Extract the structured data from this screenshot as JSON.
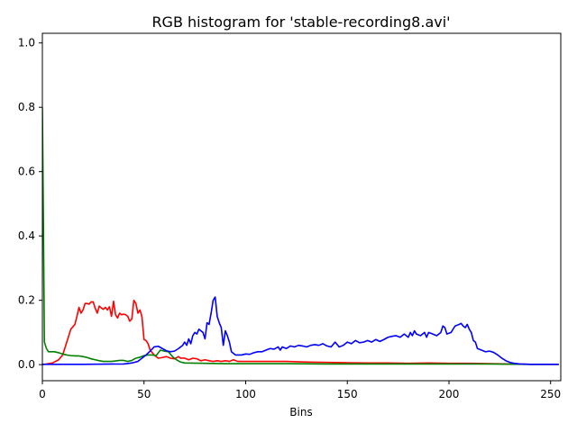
{
  "chart_data": {
    "type": "line",
    "title": "RGB histogram for 'stable-recording8.avi'",
    "xlabel": "Bins",
    "ylabel": "",
    "xlim": [
      0,
      255
    ],
    "ylim": [
      -0.05,
      1.03
    ],
    "x_ticks": [
      0,
      50,
      100,
      150,
      200,
      250
    ],
    "y_ticks": [
      0.0,
      0.2,
      0.4,
      0.6,
      0.8,
      1.0
    ],
    "x_tick_labels": [
      "0",
      "50",
      "100",
      "150",
      "200",
      "250"
    ],
    "y_tick_labels": [
      "0.0",
      "0.2",
      "0.4",
      "0.6",
      "0.8",
      "1.0"
    ],
    "grid": false,
    "legend": "none",
    "series": [
      {
        "color": "#ff0000",
        "points": [
          [
            0,
            0
          ],
          [
            5,
            0.005
          ],
          [
            8,
            0.015
          ],
          [
            10,
            0.03
          ],
          [
            12,
            0.07
          ],
          [
            14,
            0.11
          ],
          [
            16,
            0.125
          ],
          [
            17,
            0.15
          ],
          [
            18,
            0.178
          ],
          [
            19,
            0.16
          ],
          [
            20,
            0.17
          ],
          [
            21,
            0.19
          ],
          [
            22,
            0.19
          ],
          [
            23,
            0.188
          ],
          [
            24,
            0.195
          ],
          [
            25,
            0.195
          ],
          [
            26,
            0.175
          ],
          [
            27,
            0.16
          ],
          [
            28,
            0.182
          ],
          [
            29,
            0.176
          ],
          [
            30,
            0.172
          ],
          [
            31,
            0.178
          ],
          [
            32,
            0.17
          ],
          [
            33,
            0.18
          ],
          [
            34,
            0.15
          ],
          [
            35,
            0.197
          ],
          [
            36,
            0.155
          ],
          [
            37,
            0.145
          ],
          [
            38,
            0.16
          ],
          [
            39,
            0.155
          ],
          [
            40,
            0.157
          ],
          [
            41,
            0.155
          ],
          [
            42,
            0.15
          ],
          [
            43,
            0.135
          ],
          [
            44,
            0.142
          ],
          [
            45,
            0.2
          ],
          [
            46,
            0.19
          ],
          [
            47,
            0.16
          ],
          [
            48,
            0.17
          ],
          [
            49,
            0.148
          ],
          [
            50,
            0.078
          ],
          [
            51,
            0.075
          ],
          [
            52,
            0.065
          ],
          [
            53,
            0.045
          ],
          [
            55,
            0.03
          ],
          [
            57,
            0.02
          ],
          [
            59,
            0.022
          ],
          [
            61,
            0.025
          ],
          [
            63,
            0.02
          ],
          [
            65,
            0.018
          ],
          [
            67,
            0.025
          ],
          [
            68,
            0.02
          ],
          [
            70,
            0.02
          ],
          [
            72,
            0.015
          ],
          [
            74,
            0.02
          ],
          [
            76,
            0.018
          ],
          [
            78,
            0.012
          ],
          [
            80,
            0.015
          ],
          [
            82,
            0.012
          ],
          [
            84,
            0.01
          ],
          [
            86,
            0.012
          ],
          [
            88,
            0.01
          ],
          [
            90,
            0.012
          ],
          [
            92,
            0.01
          ],
          [
            94,
            0.015
          ],
          [
            96,
            0.01
          ],
          [
            100,
            0.01
          ],
          [
            110,
            0.01
          ],
          [
            120,
            0.01
          ],
          [
            130,
            0.008
          ],
          [
            140,
            0.007
          ],
          [
            150,
            0.006
          ],
          [
            160,
            0.005
          ],
          [
            170,
            0.005
          ],
          [
            180,
            0.004
          ],
          [
            190,
            0.005
          ],
          [
            200,
            0.004
          ],
          [
            210,
            0.004
          ],
          [
            220,
            0.003
          ],
          [
            230,
            0.002
          ],
          [
            240,
            0.001
          ],
          [
            254,
            0.001
          ]
        ]
      },
      {
        "color": "#008000",
        "points": [
          [
            0,
            0.8
          ],
          [
            0.5,
            0.45
          ],
          [
            1,
            0.07
          ],
          [
            2,
            0.05
          ],
          [
            3,
            0.04
          ],
          [
            6,
            0.04
          ],
          [
            8,
            0.037
          ],
          [
            10,
            0.033
          ],
          [
            12,
            0.03
          ],
          [
            14,
            0.028
          ],
          [
            16,
            0.027
          ],
          [
            18,
            0.027
          ],
          [
            20,
            0.025
          ],
          [
            22,
            0.022
          ],
          [
            24,
            0.018
          ],
          [
            26,
            0.015
          ],
          [
            28,
            0.012
          ],
          [
            30,
            0.01
          ],
          [
            34,
            0.01
          ],
          [
            38,
            0.013
          ],
          [
            40,
            0.013
          ],
          [
            42,
            0.01
          ],
          [
            44,
            0.013
          ],
          [
            46,
            0.02
          ],
          [
            48,
            0.023
          ],
          [
            50,
            0.028
          ],
          [
            52,
            0.03
          ],
          [
            54,
            0.03
          ],
          [
            56,
            0.028
          ],
          [
            58,
            0.045
          ],
          [
            60,
            0.042
          ],
          [
            62,
            0.04
          ],
          [
            64,
            0.025
          ],
          [
            66,
            0.015
          ],
          [
            68,
            0.008
          ],
          [
            70,
            0.005
          ],
          [
            80,
            0.004
          ],
          [
            90,
            0.003
          ],
          [
            100,
            0.003
          ],
          [
            120,
            0.003
          ],
          [
            140,
            0.002
          ],
          [
            160,
            0.002
          ],
          [
            180,
            0.002
          ],
          [
            200,
            0.002
          ],
          [
            220,
            0.002
          ],
          [
            240,
            0.001
          ],
          [
            254,
            0.001
          ]
        ]
      },
      {
        "color": "#0000ff",
        "points": [
          [
            0,
            0.001
          ],
          [
            20,
            0.001
          ],
          [
            40,
            0.002
          ],
          [
            44,
            0.005
          ],
          [
            47,
            0.01
          ],
          [
            49,
            0.02
          ],
          [
            51,
            0.03
          ],
          [
            53,
            0.042
          ],
          [
            55,
            0.055
          ],
          [
            57,
            0.057
          ],
          [
            59,
            0.05
          ],
          [
            61,
            0.043
          ],
          [
            63,
            0.04
          ],
          [
            65,
            0.042
          ],
          [
            67,
            0.05
          ],
          [
            69,
            0.06
          ],
          [
            70,
            0.07
          ],
          [
            71,
            0.06
          ],
          [
            72,
            0.08
          ],
          [
            73,
            0.065
          ],
          [
            74,
            0.09
          ],
          [
            75,
            0.1
          ],
          [
            76,
            0.095
          ],
          [
            77,
            0.11
          ],
          [
            78,
            0.105
          ],
          [
            79,
            0.1
          ],
          [
            80,
            0.08
          ],
          [
            81,
            0.13
          ],
          [
            82,
            0.125
          ],
          [
            83,
            0.16
          ],
          [
            84,
            0.2
          ],
          [
            85,
            0.21
          ],
          [
            86,
            0.15
          ],
          [
            87,
            0.13
          ],
          [
            88,
            0.115
          ],
          [
            89,
            0.06
          ],
          [
            90,
            0.105
          ],
          [
            91,
            0.09
          ],
          [
            92,
            0.07
          ],
          [
            93,
            0.04
          ],
          [
            95,
            0.03
          ],
          [
            98,
            0.03
          ],
          [
            100,
            0.033
          ],
          [
            102,
            0.032
          ],
          [
            104,
            0.037
          ],
          [
            106,
            0.04
          ],
          [
            108,
            0.04
          ],
          [
            110,
            0.045
          ],
          [
            112,
            0.05
          ],
          [
            114,
            0.048
          ],
          [
            116,
            0.055
          ],
          [
            117,
            0.045
          ],
          [
            118,
            0.055
          ],
          [
            120,
            0.05
          ],
          [
            122,
            0.058
          ],
          [
            124,
            0.055
          ],
          [
            126,
            0.06
          ],
          [
            128,
            0.058
          ],
          [
            130,
            0.055
          ],
          [
            132,
            0.06
          ],
          [
            134,
            0.062
          ],
          [
            136,
            0.06
          ],
          [
            138,
            0.065
          ],
          [
            140,
            0.058
          ],
          [
            142,
            0.055
          ],
          [
            144,
            0.07
          ],
          [
            146,
            0.055
          ],
          [
            148,
            0.06
          ],
          [
            150,
            0.07
          ],
          [
            152,
            0.065
          ],
          [
            154,
            0.075
          ],
          [
            156,
            0.068
          ],
          [
            158,
            0.07
          ],
          [
            160,
            0.075
          ],
          [
            162,
            0.07
          ],
          [
            164,
            0.078
          ],
          [
            166,
            0.072
          ],
          [
            168,
            0.078
          ],
          [
            170,
            0.085
          ],
          [
            172,
            0.088
          ],
          [
            174,
            0.09
          ],
          [
            176,
            0.085
          ],
          [
            178,
            0.095
          ],
          [
            180,
            0.085
          ],
          [
            181,
            0.1
          ],
          [
            182,
            0.09
          ],
          [
            183,
            0.105
          ],
          [
            184,
            0.095
          ],
          [
            186,
            0.09
          ],
          [
            188,
            0.1
          ],
          [
            189,
            0.085
          ],
          [
            190,
            0.1
          ],
          [
            192,
            0.095
          ],
          [
            194,
            0.09
          ],
          [
            196,
            0.1
          ],
          [
            197,
            0.12
          ],
          [
            198,
            0.115
          ],
          [
            199,
            0.095
          ],
          [
            201,
            0.1
          ],
          [
            203,
            0.12
          ],
          [
            205,
            0.125
          ],
          [
            206,
            0.128
          ],
          [
            207,
            0.12
          ],
          [
            208,
            0.115
          ],
          [
            209,
            0.125
          ],
          [
            210,
            0.11
          ],
          [
            211,
            0.1
          ],
          [
            212,
            0.075
          ],
          [
            213,
            0.07
          ],
          [
            214,
            0.05
          ],
          [
            216,
            0.045
          ],
          [
            218,
            0.04
          ],
          [
            220,
            0.042
          ],
          [
            222,
            0.038
          ],
          [
            224,
            0.03
          ],
          [
            226,
            0.02
          ],
          [
            228,
            0.012
          ],
          [
            230,
            0.007
          ],
          [
            232,
            0.004
          ],
          [
            235,
            0.002
          ],
          [
            240,
            0.001
          ],
          [
            254,
            0.001
          ]
        ]
      }
    ]
  }
}
